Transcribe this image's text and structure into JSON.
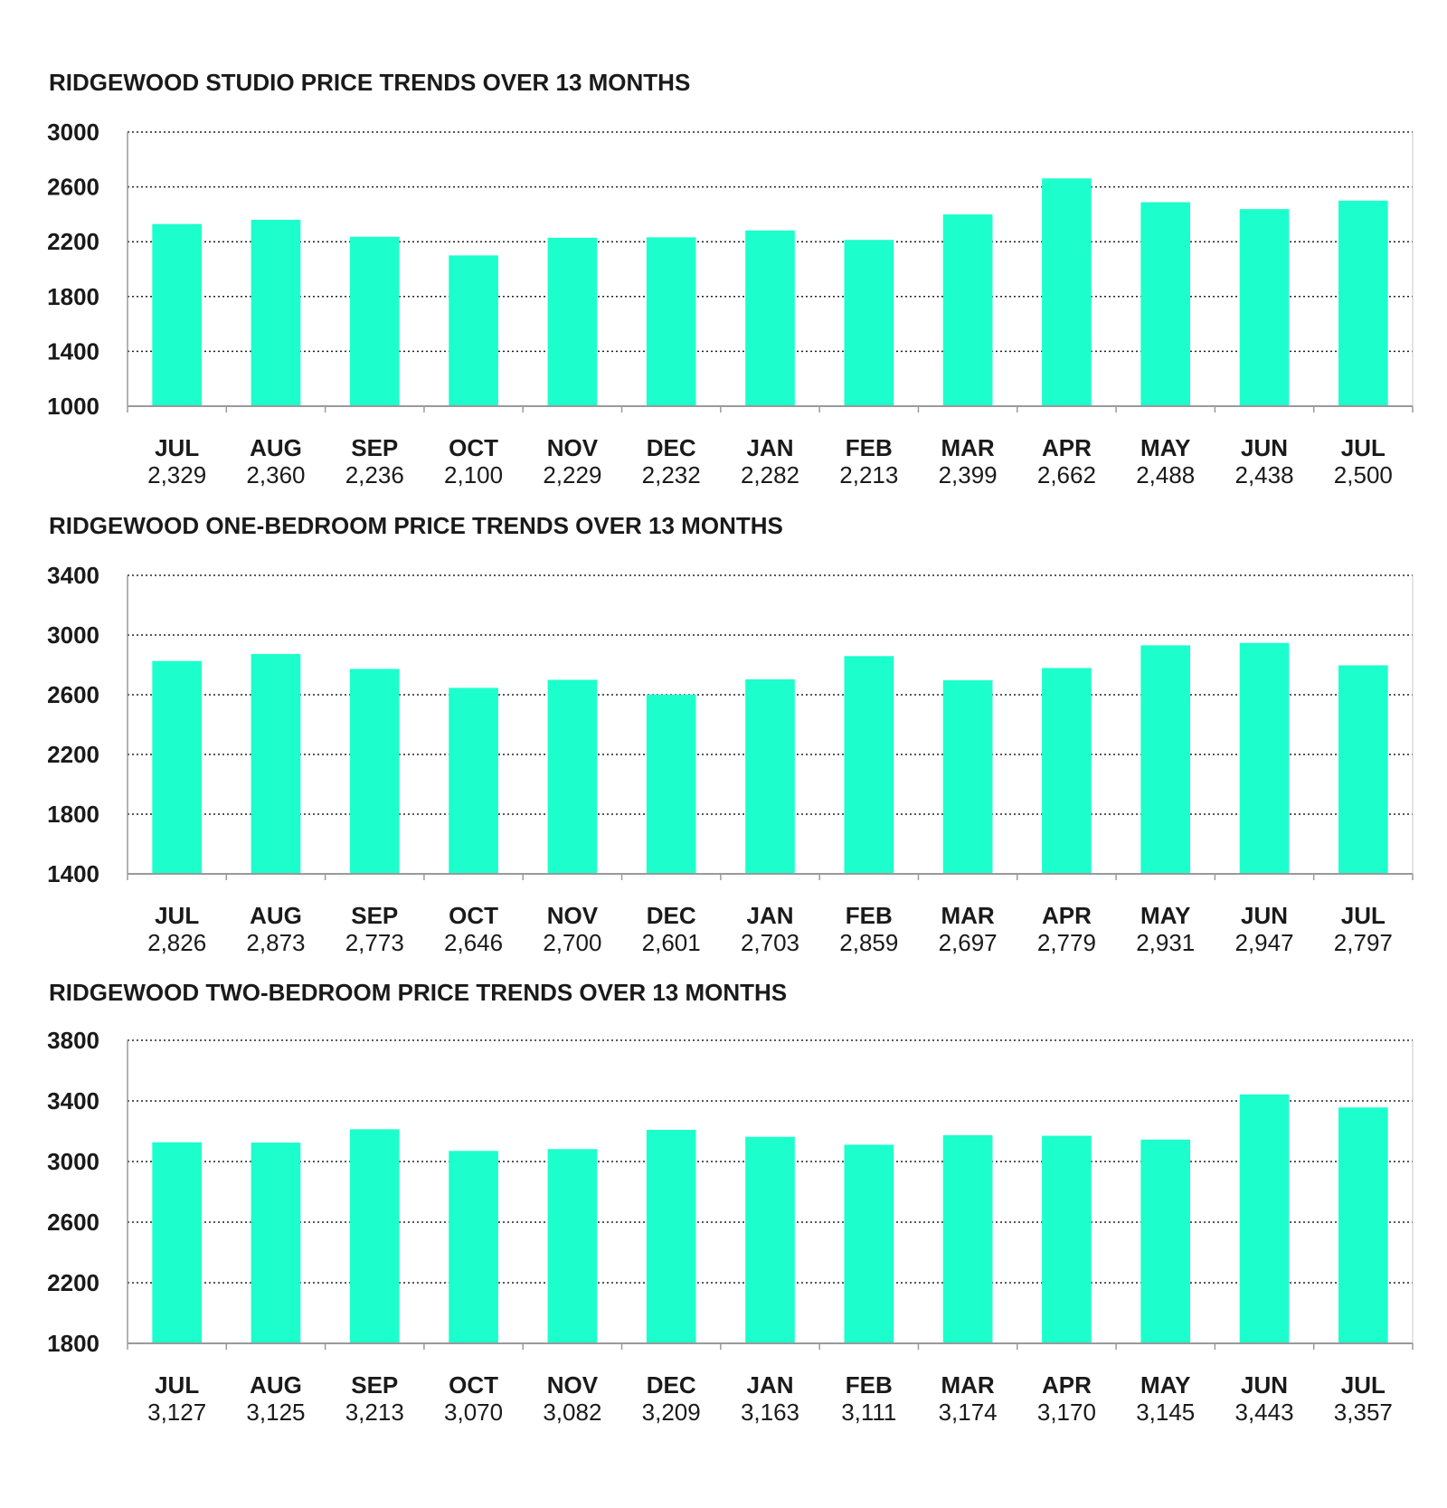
{
  "chart_data": [
    {
      "type": "bar",
      "title": "RIDGEWOOD STUDIO PRICE TRENDS OVER 13 MONTHS",
      "categories": [
        "JUL",
        "AUG",
        "SEP",
        "OCT",
        "NOV",
        "DEC",
        "JAN",
        "FEB",
        "MAR",
        "APR",
        "MAY",
        "JUN",
        "JUL"
      ],
      "values": [
        2329,
        2360,
        2236,
        2100,
        2229,
        2232,
        2282,
        2213,
        2399,
        2662,
        2488,
        2438,
        2500
      ],
      "value_labels": [
        "2,329",
        "2,360",
        "2,236",
        "2,100",
        "2,229",
        "2,232",
        "2,282",
        "2,213",
        "2,399",
        "2,662",
        "2,488",
        "2,438",
        "2,500"
      ],
      "yticks": [
        "1000",
        "1400",
        "1800",
        "2200",
        "2600",
        "3000"
      ],
      "ylim": [
        1000,
        3000
      ],
      "xlabel": "",
      "ylabel": "",
      "grid": true,
      "color": "#1cffcc"
    },
    {
      "type": "bar",
      "title": "RIDGEWOOD ONE-BEDROOM PRICE TRENDS OVER 13 MONTHS",
      "categories": [
        "JUL",
        "AUG",
        "SEP",
        "OCT",
        "NOV",
        "DEC",
        "JAN",
        "FEB",
        "MAR",
        "APR",
        "MAY",
        "JUN",
        "JUL"
      ],
      "values": [
        2826,
        2873,
        2773,
        2646,
        2700,
        2601,
        2703,
        2859,
        2697,
        2779,
        2931,
        2947,
        2797
      ],
      "value_labels": [
        "2,826",
        "2,873",
        "2,773",
        "2,646",
        "2,700",
        "2,601",
        "2,703",
        "2,859",
        "2,697",
        "2,779",
        "2,931",
        "2,947",
        "2,797"
      ],
      "yticks": [
        "1400",
        "1800",
        "2200",
        "2600",
        "3000",
        "3400"
      ],
      "ylim": [
        1400,
        3400
      ],
      "xlabel": "",
      "ylabel": "",
      "grid": true,
      "color": "#1cffcc"
    },
    {
      "type": "bar",
      "title": "RIDGEWOOD TWO-BEDROOM PRICE TRENDS OVER 13 MONTHS",
      "categories": [
        "JUL",
        "AUG",
        "SEP",
        "OCT",
        "NOV",
        "DEC",
        "JAN",
        "FEB",
        "MAR",
        "APR",
        "MAY",
        "JUN",
        "JUL"
      ],
      "values": [
        3127,
        3125,
        3213,
        3070,
        3082,
        3209,
        3163,
        3111,
        3174,
        3170,
        3145,
        3443,
        3357
      ],
      "value_labels": [
        "3,127",
        "3,125",
        "3,213",
        "3,070",
        "3,082",
        "3,209",
        "3,163",
        "3,111",
        "3,174",
        "3,170",
        "3,145",
        "3,443",
        "3,357"
      ],
      "yticks": [
        "1800",
        "2200",
        "2600",
        "3000",
        "3400",
        "3800"
      ],
      "ylim": [
        1800,
        3800
      ],
      "xlabel": "",
      "ylabel": "",
      "grid": true,
      "color": "#1cffcc"
    }
  ]
}
